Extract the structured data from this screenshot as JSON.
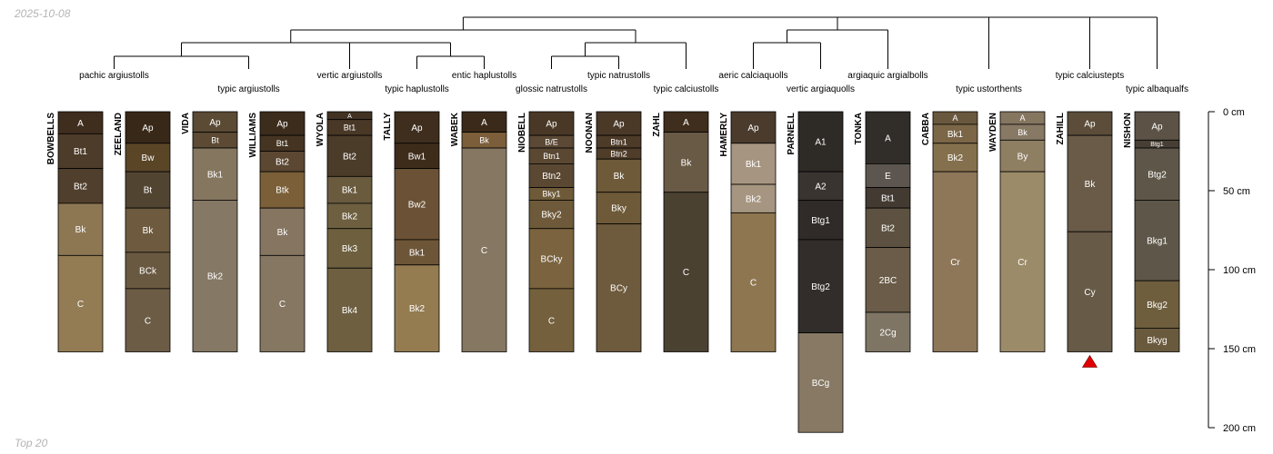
{
  "date": "2025-10-08",
  "footer_note": "Top 20",
  "depth_axis": {
    "max_cm": 200,
    "ticks": [
      {
        "value": 0,
        "label": "0 cm"
      },
      {
        "value": 50,
        "label": "50 cm"
      },
      {
        "value": 100,
        "label": "100 cm"
      },
      {
        "value": 150,
        "label": "150 cm"
      },
      {
        "value": 200,
        "label": "200 cm"
      }
    ]
  },
  "profiles": [
    {
      "name": "BOWBELLS",
      "horizons": [
        {
          "name": "A",
          "top": 0,
          "bottom": 14,
          "color": "#3f2d1d"
        },
        {
          "name": "Bt1",
          "top": 14,
          "bottom": 36,
          "color": "#4d3c29"
        },
        {
          "name": "Bt2",
          "top": 36,
          "bottom": 58,
          "color": "#503f2c"
        },
        {
          "name": "Bk",
          "top": 58,
          "bottom": 91,
          "color": "#8d7753"
        },
        {
          "name": "C",
          "top": 91,
          "bottom": 152,
          "color": "#937b53"
        }
      ]
    },
    {
      "name": "ZEELAND",
      "horizons": [
        {
          "name": "Ap",
          "top": 0,
          "bottom": 20,
          "color": "#382818"
        },
        {
          "name": "Bw",
          "top": 20,
          "bottom": 38,
          "color": "#5a4527"
        },
        {
          "name": "Bt",
          "top": 38,
          "bottom": 61,
          "color": "#514431"
        },
        {
          "name": "Bk",
          "top": 61,
          "bottom": 89,
          "color": "#6e5b3f"
        },
        {
          "name": "BCk",
          "top": 89,
          "bottom": 112,
          "color": "#6a5941"
        },
        {
          "name": "C",
          "top": 112,
          "bottom": 152,
          "color": "#6c5c45"
        }
      ]
    },
    {
      "name": "VIDA",
      "horizons": [
        {
          "name": "Ap",
          "top": 0,
          "bottom": 13,
          "color": "#5b4a34"
        },
        {
          "name": "Bt",
          "top": 13,
          "bottom": 23,
          "color": "#5c4a35"
        },
        {
          "name": "Bk1",
          "top": 23,
          "bottom": 56,
          "color": "#857660"
        },
        {
          "name": "Bk2",
          "top": 56,
          "bottom": 152,
          "color": "#857864"
        }
      ]
    },
    {
      "name": "WILLIAMS",
      "horizons": [
        {
          "name": "Ap",
          "top": 0,
          "bottom": 15,
          "color": "#3c2c1c"
        },
        {
          "name": "Bt1",
          "top": 15,
          "bottom": 25,
          "color": "#463422"
        },
        {
          "name": "Bt2",
          "top": 25,
          "bottom": 38,
          "color": "#5b4732"
        },
        {
          "name": "Btk",
          "top": 38,
          "bottom": 61,
          "color": "#7a5f38"
        },
        {
          "name": "Bk",
          "top": 61,
          "bottom": 91,
          "color": "#857561"
        },
        {
          "name": "C",
          "top": 91,
          "bottom": 152,
          "color": "#857762"
        }
      ]
    },
    {
      "name": "WYOLA",
      "horizons": [
        {
          "name": "A",
          "top": 0,
          "bottom": 5,
          "color": "#413222"
        },
        {
          "name": "Bt1",
          "top": 5,
          "bottom": 15,
          "color": "#493826"
        },
        {
          "name": "Bt2",
          "top": 15,
          "bottom": 41,
          "color": "#4b3b29"
        },
        {
          "name": "Bk1",
          "top": 41,
          "bottom": 58,
          "color": "#6a5b3f"
        },
        {
          "name": "Bk2",
          "top": 58,
          "bottom": 74,
          "color": "#6e5f40"
        },
        {
          "name": "Bk3",
          "top": 74,
          "bottom": 99,
          "color": "#6e603f"
        },
        {
          "name": "Bk4",
          "top": 99,
          "bottom": 152,
          "color": "#6d5f40"
        }
      ]
    },
    {
      "name": "TALLY",
      "horizons": [
        {
          "name": "Ap",
          "top": 0,
          "bottom": 20,
          "color": "#3f2e1d"
        },
        {
          "name": "Bw1",
          "top": 20,
          "bottom": 36,
          "color": "#3e2c1b"
        },
        {
          "name": "Bw2",
          "top": 36,
          "bottom": 81,
          "color": "#6b5236"
        },
        {
          "name": "Bk1",
          "top": 81,
          "bottom": 97,
          "color": "#6d5538"
        },
        {
          "name": "Bk2",
          "top": 97,
          "bottom": 152,
          "color": "#947b50"
        }
      ]
    },
    {
      "name": "WABEK",
      "horizons": [
        {
          "name": "A",
          "top": 0,
          "bottom": 13,
          "color": "#3b2a1a"
        },
        {
          "name": "Bk",
          "top": 13,
          "bottom": 23,
          "color": "#7c5e3b"
        },
        {
          "name": "C",
          "top": 23,
          "bottom": 152,
          "color": "#857762"
        }
      ]
    },
    {
      "name": "NIOBELL",
      "horizons": [
        {
          "name": "Ap",
          "top": 0,
          "bottom": 15,
          "color": "#4a3826"
        },
        {
          "name": "B/E",
          "top": 15,
          "bottom": 23,
          "color": "#5b4935"
        },
        {
          "name": "Btn1",
          "top": 23,
          "bottom": 33,
          "color": "#5a4833"
        },
        {
          "name": "Btn2",
          "top": 33,
          "bottom": 48,
          "color": "#5a4833"
        },
        {
          "name": "Bky1",
          "top": 48,
          "bottom": 56,
          "color": "#6e5a38"
        },
        {
          "name": "Bky2",
          "top": 56,
          "bottom": 74,
          "color": "#6e5a3a"
        },
        {
          "name": "BCky",
          "top": 74,
          "bottom": 112,
          "color": "#7a633e"
        },
        {
          "name": "C",
          "top": 112,
          "bottom": 152,
          "color": "#74603d"
        }
      ]
    },
    {
      "name": "NOONAN",
      "horizons": [
        {
          "name": "Ap",
          "top": 0,
          "bottom": 15,
          "color": "#4a3927"
        },
        {
          "name": "Btn1",
          "top": 15,
          "bottom": 23,
          "color": "#4d3b29"
        },
        {
          "name": "Btn2",
          "top": 23,
          "bottom": 30,
          "color": "#4f3d2a"
        },
        {
          "name": "Bk",
          "top": 30,
          "bottom": 51,
          "color": "#6e5938"
        },
        {
          "name": "Bky",
          "top": 51,
          "bottom": 71,
          "color": "#6e5938"
        },
        {
          "name": "BCy",
          "top": 71,
          "bottom": 152,
          "color": "#6e5a3c"
        }
      ]
    },
    {
      "name": "ZAHL",
      "horizons": [
        {
          "name": "A",
          "top": 0,
          "bottom": 13,
          "color": "#3f2e1d"
        },
        {
          "name": "Bk",
          "top": 13,
          "bottom": 51,
          "color": "#695a46"
        },
        {
          "name": "C",
          "top": 51,
          "bottom": 152,
          "color": "#4b4131"
        }
      ]
    },
    {
      "name": "HAMERLY",
      "horizons": [
        {
          "name": "Ap",
          "top": 0,
          "bottom": 20,
          "color": "#4a3b2d"
        },
        {
          "name": "Bk1",
          "top": 20,
          "bottom": 46,
          "color": "#a69580"
        },
        {
          "name": "Bk2",
          "top": 46,
          "bottom": 64,
          "color": "#a69580"
        },
        {
          "name": "C",
          "top": 64,
          "bottom": 152,
          "color": "#8e7650"
        }
      ]
    },
    {
      "name": "PARNELL",
      "horizons": [
        {
          "name": "A1",
          "top": 0,
          "bottom": 38,
          "color": "#2e2a25"
        },
        {
          "name": "A2",
          "top": 38,
          "bottom": 56,
          "color": "#3a3430"
        },
        {
          "name": "Btg1",
          "top": 56,
          "bottom": 81,
          "color": "#302b28"
        },
        {
          "name": "Btg2",
          "top": 81,
          "bottom": 140,
          "color": "#322d2a"
        },
        {
          "name": "BCg",
          "top": 140,
          "bottom": 203,
          "color": "#877964"
        }
      ]
    },
    {
      "name": "TONKA",
      "horizons": [
        {
          "name": "A",
          "top": 0,
          "bottom": 33,
          "color": "#312d28"
        },
        {
          "name": "E",
          "top": 33,
          "bottom": 48,
          "color": "#5d5650"
        },
        {
          "name": "Bt1",
          "top": 48,
          "bottom": 61,
          "color": "#433a31"
        },
        {
          "name": "Bt2",
          "top": 61,
          "bottom": 86,
          "color": "#5d5141"
        },
        {
          "name": "2BC",
          "top": 86,
          "bottom": 127,
          "color": "#6a5c48"
        },
        {
          "name": "2Cg",
          "top": 127,
          "bottom": 152,
          "color": "#7e7564"
        }
      ]
    },
    {
      "name": "CABBA",
      "horizons": [
        {
          "name": "A",
          "top": 0,
          "bottom": 8,
          "color": "#6a583e"
        },
        {
          "name": "Bk1",
          "top": 8,
          "bottom": 20,
          "color": "#7b6647"
        },
        {
          "name": "Bk2",
          "top": 20,
          "bottom": 38,
          "color": "#85704d"
        },
        {
          "name": "Cr",
          "top": 38,
          "bottom": 152,
          "color": "#8e7659"
        }
      ]
    },
    {
      "name": "WAYDEN",
      "horizons": [
        {
          "name": "A",
          "top": 0,
          "bottom": 8,
          "color": "#857660"
        },
        {
          "name": "Bk",
          "top": 8,
          "bottom": 18,
          "color": "#877964"
        },
        {
          "name": "By",
          "top": 18,
          "bottom": 38,
          "color": "#8e7f63"
        },
        {
          "name": "Cr",
          "top": 38,
          "bottom": 152,
          "color": "#9b8b69"
        }
      ]
    },
    {
      "name": "ZAHILL",
      "marker": true,
      "horizons": [
        {
          "name": "Ap",
          "top": 0,
          "bottom": 15,
          "color": "#5b4d3a"
        },
        {
          "name": "Bk",
          "top": 15,
          "bottom": 76,
          "color": "#695b47"
        },
        {
          "name": "Cy",
          "top": 76,
          "bottom": 152,
          "color": "#675a46"
        }
      ]
    },
    {
      "name": "NISHON",
      "horizons": [
        {
          "name": "Ap",
          "top": 0,
          "bottom": 18,
          "color": "#5c5245"
        },
        {
          "name": "Btg1",
          "top": 18,
          "bottom": 23,
          "color": "#473f35"
        },
        {
          "name": "Btg2",
          "top": 23,
          "bottom": 56,
          "color": "#5e5749"
        },
        {
          "name": "Bkg1",
          "top": 56,
          "bottom": 107,
          "color": "#5e5749"
        },
        {
          "name": "Bkg2",
          "top": 107,
          "bottom": 137,
          "color": "#6e5e3e"
        },
        {
          "name": "Bkyg",
          "top": 137,
          "bottom": 152,
          "color": "#6a5a3d"
        }
      ]
    }
  ],
  "taxa": [
    {
      "label": "pachic argiustolls",
      "members": [
        0,
        1
      ]
    },
    {
      "label": "typic argiustolls",
      "members": [
        2,
        3
      ]
    },
    {
      "label": "vertic argiustolls",
      "members": [
        4
      ]
    },
    {
      "label": "typic haplustolls",
      "members": [
        5
      ]
    },
    {
      "label": "entic haplustolls",
      "members": [
        6
      ]
    },
    {
      "label": "glossic natrustolls",
      "members": [
        7
      ]
    },
    {
      "label": "typic natrustolls",
      "members": [
        8
      ]
    },
    {
      "label": "typic calciustolls",
      "members": [
        9
      ]
    },
    {
      "label": "aeric calciaquolls",
      "members": [
        10
      ]
    },
    {
      "label": "vertic argiaquolls",
      "members": [
        11
      ]
    },
    {
      "label": "argiaquic argialbolls",
      "members": [
        12
      ]
    },
    {
      "label": "typic ustorthents",
      "members": [
        13,
        14
      ]
    },
    {
      "label": "typic calciustepts",
      "members": [
        15
      ]
    },
    {
      "label": "typic albaqualfs",
      "members": [
        16
      ]
    }
  ]
}
